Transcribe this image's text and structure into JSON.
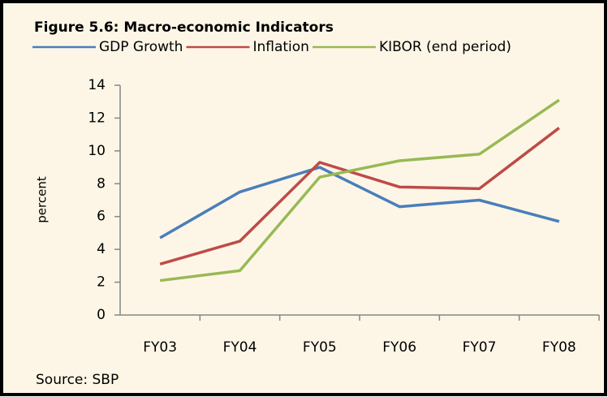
{
  "chart_data": {
    "type": "line",
    "title": "Figure 5.6: Macro-economic Indicators",
    "y_label": "percent",
    "source": "Source: SBP",
    "categories": [
      "FY03",
      "FY04",
      "FY05",
      "FY06",
      "FY07",
      "FY08"
    ],
    "series": [
      {
        "name": "GDP Growth",
        "color": "#4a7ebb",
        "values": [
          4.7,
          7.5,
          9.0,
          6.6,
          7.0,
          5.7
        ]
      },
      {
        "name": "Inflation",
        "color": "#be4b48",
        "values": [
          3.1,
          4.5,
          9.3,
          7.8,
          7.7,
          11.4
        ]
      },
      {
        "name": "KIBOR (end period)",
        "color": "#98b954",
        "values": [
          2.1,
          2.7,
          8.4,
          9.4,
          9.8,
          13.1
        ]
      }
    ],
    "ylim": [
      0,
      14
    ],
    "yticks": [
      0,
      2,
      4,
      6,
      8,
      10,
      12,
      14
    ],
    "grid": false
  }
}
